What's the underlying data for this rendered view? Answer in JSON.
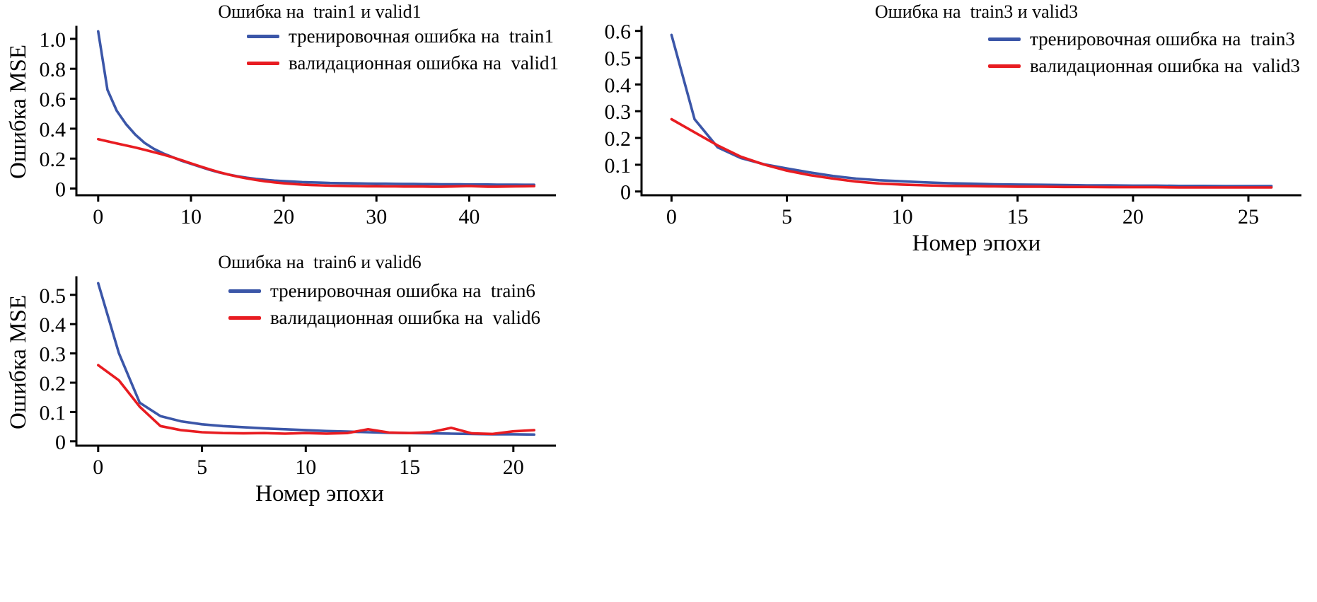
{
  "chart_data": [
    {
      "type": "line",
      "title": "Ошибка на  train1 и valid1",
      "xlabel": "",
      "ylabel": "Ошибка MSE",
      "xlim": [
        -2.35,
        49.35
      ],
      "ylim": [
        -0.045,
        1.08
      ],
      "xticks": [
        0,
        10,
        20,
        30,
        40
      ],
      "xtick_labels": [
        "0",
        "10",
        "20",
        "30",
        "40"
      ],
      "yticks": [
        0,
        0.2,
        0.4,
        0.6,
        0.8,
        1.0
      ],
      "ytick_labels": [
        "0",
        "0.2",
        "0.4",
        "0.6",
        "0.8",
        "1.0"
      ],
      "grid": false,
      "legend_position": "upper right",
      "series": [
        {
          "id": "train",
          "name": "тренировочная ошибка на  train1",
          "color": "#3b56a8",
          "x": [
            0,
            1,
            2,
            3,
            4,
            5,
            6,
            7,
            8,
            9,
            10,
            11,
            12,
            13,
            14,
            15,
            16,
            17,
            18,
            19,
            20,
            21,
            22,
            23,
            24,
            25,
            26,
            27,
            28,
            29,
            30,
            31,
            32,
            33,
            34,
            35,
            36,
            37,
            38,
            39,
            40,
            41,
            42,
            43,
            44,
            45,
            46,
            47
          ],
          "values": [
            1.05,
            0.66,
            0.52,
            0.43,
            0.36,
            0.305,
            0.265,
            0.235,
            0.21,
            0.185,
            0.165,
            0.145,
            0.125,
            0.108,
            0.094,
            0.082,
            0.072,
            0.064,
            0.058,
            0.053,
            0.049,
            0.046,
            0.043,
            0.041,
            0.039,
            0.037,
            0.036,
            0.035,
            0.034,
            0.033,
            0.032,
            0.032,
            0.031,
            0.03,
            0.03,
            0.029,
            0.029,
            0.028,
            0.028,
            0.028,
            0.027,
            0.027,
            0.027,
            0.026,
            0.026,
            0.026,
            0.025,
            0.025
          ]
        },
        {
          "id": "valid",
          "name": "валидационная ошибка на  valid1",
          "color": "#e81c21",
          "x": [
            0,
            1,
            2,
            3,
            4,
            5,
            6,
            7,
            8,
            9,
            10,
            11,
            12,
            13,
            14,
            15,
            16,
            17,
            18,
            19,
            20,
            21,
            22,
            23,
            24,
            25,
            26,
            27,
            28,
            29,
            30,
            31,
            32,
            33,
            34,
            35,
            36,
            37,
            38,
            39,
            40,
            41,
            42,
            43,
            44,
            45,
            46,
            47
          ],
          "values": [
            0.33,
            0.315,
            0.301,
            0.288,
            0.274,
            0.259,
            0.243,
            0.227,
            0.209,
            0.189,
            0.168,
            0.148,
            0.128,
            0.11,
            0.094,
            0.08,
            0.068,
            0.057,
            0.048,
            0.041,
            0.035,
            0.03,
            0.026,
            0.023,
            0.021,
            0.019,
            0.018,
            0.017,
            0.016,
            0.015,
            0.015,
            0.014,
            0.014,
            0.013,
            0.013,
            0.013,
            0.012,
            0.012,
            0.013,
            0.015,
            0.017,
            0.014,
            0.012,
            0.012,
            0.013,
            0.014,
            0.015,
            0.016
          ]
        }
      ]
    },
    {
      "type": "line",
      "title": "Ошибка на  train3 и valid3",
      "xlabel": "Номер эпохи",
      "ylabel": "",
      "xlim": [
        -1.3,
        27.3
      ],
      "ylim": [
        -0.014,
        0.615
      ],
      "xticks": [
        0,
        5,
        10,
        15,
        20,
        25
      ],
      "xtick_labels": [
        "0",
        "5",
        "10",
        "15",
        "20",
        "25"
      ],
      "yticks": [
        0,
        0.1,
        0.2,
        0.3,
        0.4,
        0.5,
        0.6
      ],
      "ytick_labels": [
        "0",
        "0.1",
        "0.2",
        "0.3",
        "0.4",
        "0.5",
        "0.6"
      ],
      "grid": false,
      "legend_position": "upper right",
      "series": [
        {
          "id": "train",
          "name": "тренировочная ошибка на  train3",
          "color": "#3b56a8",
          "x": [
            0,
            1,
            2,
            3,
            4,
            5,
            6,
            7,
            8,
            9,
            10,
            11,
            12,
            13,
            14,
            15,
            16,
            17,
            18,
            19,
            20,
            21,
            22,
            23,
            24,
            25,
            26
          ],
          "values": [
            0.585,
            0.27,
            0.165,
            0.125,
            0.102,
            0.086,
            0.071,
            0.058,
            0.048,
            0.042,
            0.038,
            0.034,
            0.031,
            0.029,
            0.027,
            0.026,
            0.025,
            0.024,
            0.023,
            0.023,
            0.022,
            0.022,
            0.021,
            0.021,
            0.02,
            0.02,
            0.02
          ]
        },
        {
          "id": "valid",
          "name": "валидационная ошибка на  valid3",
          "color": "#e81c21",
          "x": [
            0,
            1,
            2,
            3,
            4,
            5,
            6,
            7,
            8,
            9,
            10,
            11,
            12,
            13,
            14,
            15,
            16,
            17,
            18,
            19,
            20,
            21,
            22,
            23,
            24,
            25,
            26
          ],
          "values": [
            0.27,
            0.221,
            0.172,
            0.13,
            0.101,
            0.078,
            0.061,
            0.048,
            0.037,
            0.03,
            0.026,
            0.023,
            0.021,
            0.02,
            0.019,
            0.018,
            0.018,
            0.017,
            0.017,
            0.016,
            0.016,
            0.016,
            0.015,
            0.015,
            0.015,
            0.015,
            0.015
          ]
        }
      ]
    },
    {
      "type": "line",
      "title": "Ошибка на  train6 и valid6",
      "xlabel": "Номер эпохи",
      "ylabel": "Ошибка MSE",
      "xlim": [
        -1.05,
        22.05
      ],
      "ylim": [
        -0.015,
        0.56
      ],
      "xticks": [
        0,
        5,
        10,
        15,
        20
      ],
      "xtick_labels": [
        "0",
        "5",
        "10",
        "15",
        "20"
      ],
      "yticks": [
        0,
        0.1,
        0.2,
        0.3,
        0.4,
        0.5
      ],
      "ytick_labels": [
        "0",
        "0.1",
        "0.2",
        "0.3",
        "0.4",
        "0.5"
      ],
      "grid": false,
      "legend_position": "upper right",
      "series": [
        {
          "id": "train",
          "name": "тренировочная ошибка на  train6",
          "color": "#3b56a8",
          "x": [
            0,
            1,
            2,
            3,
            4,
            5,
            6,
            7,
            8,
            9,
            10,
            11,
            12,
            13,
            14,
            15,
            16,
            17,
            18,
            19,
            20,
            21
          ],
          "values": [
            0.54,
            0.3,
            0.132,
            0.086,
            0.068,
            0.058,
            0.052,
            0.048,
            0.044,
            0.041,
            0.038,
            0.035,
            0.033,
            0.031,
            0.029,
            0.028,
            0.027,
            0.026,
            0.025,
            0.024,
            0.024,
            0.023
          ]
        },
        {
          "id": "valid",
          "name": "валидационная ошибка на  valid6",
          "color": "#e81c21",
          "x": [
            0,
            1,
            2,
            3,
            4,
            5,
            6,
            7,
            8,
            9,
            10,
            11,
            12,
            13,
            14,
            15,
            16,
            17,
            18,
            19,
            20,
            21
          ],
          "values": [
            0.26,
            0.208,
            0.118,
            0.052,
            0.038,
            0.031,
            0.028,
            0.027,
            0.028,
            0.026,
            0.028,
            0.026,
            0.028,
            0.041,
            0.03,
            0.028,
            0.031,
            0.046,
            0.027,
            0.025,
            0.034,
            0.038
          ]
        }
      ]
    }
  ],
  "colors": {
    "train_line": "#3b56a8",
    "valid_line": "#e81c21",
    "axis": "#000000",
    "background": "#ffffff"
  }
}
